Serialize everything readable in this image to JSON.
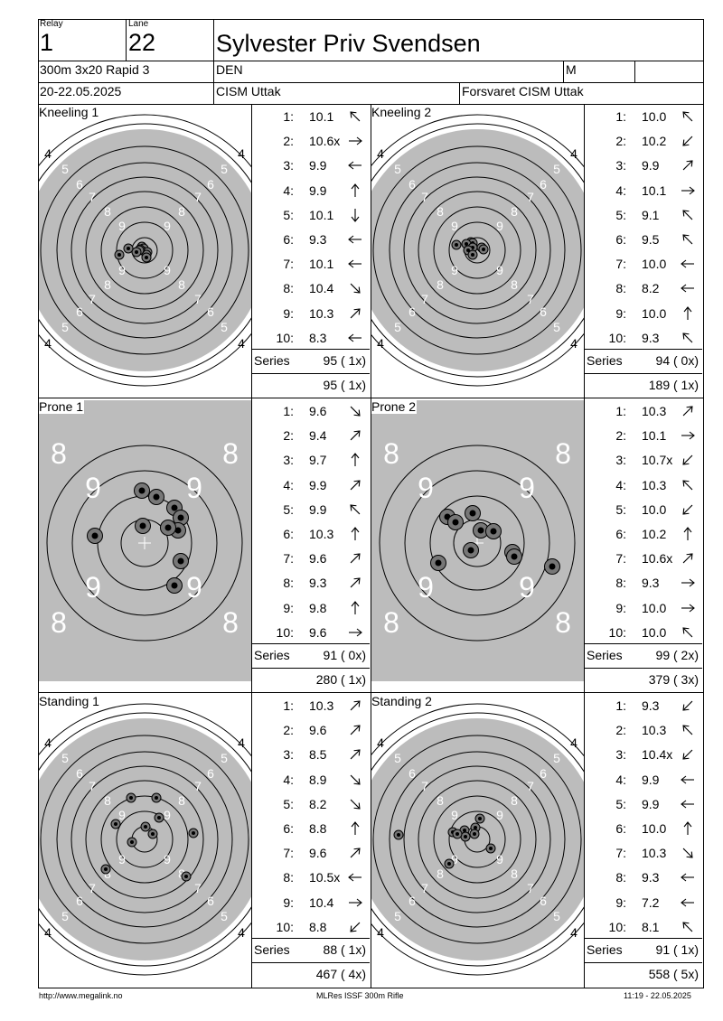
{
  "header": {
    "relay_label": "Relay",
    "relay": "1",
    "lane_label": "Lane",
    "lane": "22",
    "shooter_name": "Sylvester Priv Svendsen",
    "event": "300m 3x20 Rapid 3",
    "nation": "DEN",
    "gender": "M",
    "dates": "20-22.05.2025",
    "competition": "CISM Uttak",
    "organizer": "Forsvaret CISM Uttak"
  },
  "colors": {
    "target_black": "#bcbcbc",
    "ring_line": "#000000",
    "background": "#ffffff"
  },
  "series_label": "Series",
  "panels": [
    {
      "id": "k1",
      "label": "Kneeling 1",
      "kind": "kneel",
      "shots": [
        {
          "no": "1:",
          "value": "10.1",
          "dir": "up-left"
        },
        {
          "no": "2:",
          "value": "10.6x",
          "dir": "right"
        },
        {
          "no": "3:",
          "value": "9.9",
          "dir": "left"
        },
        {
          "no": "4:",
          "value": "9.9",
          "dir": "up"
        },
        {
          "no": "5:",
          "value": "10.1",
          "dir": "down"
        },
        {
          "no": "6:",
          "value": "9.3",
          "dir": "left"
        },
        {
          "no": "7:",
          "value": "10.1",
          "dir": "left"
        },
        {
          "no": "8:",
          "value": "10.4",
          "dir": "down-right"
        },
        {
          "no": "9:",
          "value": "10.3",
          "dir": "up-right"
        },
        {
          "no": "10:",
          "value": "8.3",
          "dir": "left"
        }
      ],
      "series_total": "95 ( 1x)",
      "running_total": "95 ( 1x)",
      "hits": [
        [
          -3,
          -4
        ],
        [
          -1,
          -2
        ],
        [
          3,
          2
        ],
        [
          2,
          5
        ],
        [
          2,
          8
        ],
        [
          -5,
          -1
        ],
        [
          -6,
          0
        ],
        [
          -9,
          2
        ],
        [
          -18,
          -2
        ],
        [
          -28,
          5
        ]
      ]
    },
    {
      "id": "k2",
      "label": "Kneeling 2",
      "kind": "kneel",
      "shots": [
        {
          "no": "1:",
          "value": "10.0",
          "dir": "up-left"
        },
        {
          "no": "2:",
          "value": "10.2",
          "dir": "down-left"
        },
        {
          "no": "3:",
          "value": "9.9",
          "dir": "up-right"
        },
        {
          "no": "4:",
          "value": "10.1",
          "dir": "right"
        },
        {
          "no": "5:",
          "value": "9.1",
          "dir": "up-left"
        },
        {
          "no": "6:",
          "value": "9.5",
          "dir": "up-left"
        },
        {
          "no": "7:",
          "value": "10.0",
          "dir": "left"
        },
        {
          "no": "8:",
          "value": "8.2",
          "dir": "left"
        },
        {
          "no": "9:",
          "value": "10.0",
          "dir": "up"
        },
        {
          "no": "10:",
          "value": "9.3",
          "dir": "up-left"
        }
      ],
      "series_total": "94 ( 0x)",
      "running_total": "189 ( 1x)",
      "hits": [
        [
          -10,
          -5
        ],
        [
          -7,
          -9
        ],
        [
          -5,
          -8
        ],
        [
          -12,
          -7
        ],
        [
          -5,
          -3
        ],
        [
          5,
          -3
        ],
        [
          7,
          -1
        ],
        [
          -10,
          0
        ],
        [
          -5,
          5
        ],
        [
          -23,
          -6
        ]
      ]
    },
    {
      "id": "p1",
      "label": "Prone 1",
      "kind": "prone",
      "shots": [
        {
          "no": "1:",
          "value": "9.6",
          "dir": "down-right"
        },
        {
          "no": "2:",
          "value": "9.4",
          "dir": "up-right"
        },
        {
          "no": "3:",
          "value": "9.7",
          "dir": "up"
        },
        {
          "no": "4:",
          "value": "9.9",
          "dir": "up-right"
        },
        {
          "no": "5:",
          "value": "9.9",
          "dir": "up-left"
        },
        {
          "no": "6:",
          "value": "10.3",
          "dir": "up"
        },
        {
          "no": "7:",
          "value": "9.6",
          "dir": "up-right"
        },
        {
          "no": "8:",
          "value": "9.3",
          "dir": "up-right"
        },
        {
          "no": "9:",
          "value": "9.8",
          "dir": "up"
        },
        {
          "no": "10:",
          "value": "9.6",
          "dir": "right"
        }
      ],
      "series_total": "91 ( 0x)",
      "running_total": "280 ( 1x)",
      "hits": [
        [
          -3,
          -58
        ],
        [
          13,
          -51
        ],
        [
          33,
          -39
        ],
        [
          40,
          -28
        ],
        [
          37,
          -14
        ],
        [
          26,
          -17
        ],
        [
          -2,
          -19
        ],
        [
          -55,
          -8
        ],
        [
          40,
          20
        ],
        [
          33,
          47
        ]
      ]
    },
    {
      "id": "p2",
      "label": "Prone 2",
      "kind": "prone",
      "shots": [
        {
          "no": "1:",
          "value": "10.3",
          "dir": "up-right"
        },
        {
          "no": "2:",
          "value": "10.1",
          "dir": "right"
        },
        {
          "no": "3:",
          "value": "10.7x",
          "dir": "down-left"
        },
        {
          "no": "4:",
          "value": "10.3",
          "dir": "up-left"
        },
        {
          "no": "5:",
          "value": "10.0",
          "dir": "down-left"
        },
        {
          "no": "6:",
          "value": "10.2",
          "dir": "up"
        },
        {
          "no": "7:",
          "value": "10.6x",
          "dir": "up-right"
        },
        {
          "no": "8:",
          "value": "9.3",
          "dir": "right"
        },
        {
          "no": "9:",
          "value": "10.0",
          "dir": "right"
        },
        {
          "no": "10:",
          "value": "10.0",
          "dir": "up-left"
        }
      ],
      "series_total": "99 ( 2x)",
      "running_total": "379 ( 3x)",
      "hits": [
        [
          -7,
          8
        ],
        [
          4,
          -14
        ],
        [
          18,
          -13
        ],
        [
          39,
          10
        ],
        [
          41,
          15
        ],
        [
          -5,
          -33
        ],
        [
          -33,
          -29
        ],
        [
          -24,
          -23
        ],
        [
          -43,
          22
        ],
        [
          83,
          26
        ]
      ]
    },
    {
      "id": "s1",
      "label": "Standing 1",
      "kind": "stand",
      "shots": [
        {
          "no": "1:",
          "value": "10.3",
          "dir": "up-right"
        },
        {
          "no": "2:",
          "value": "9.6",
          "dir": "up-right"
        },
        {
          "no": "3:",
          "value": "8.5",
          "dir": "up-right"
        },
        {
          "no": "4:",
          "value": "8.9",
          "dir": "down-right"
        },
        {
          "no": "5:",
          "value": "8.2",
          "dir": "down-right"
        },
        {
          "no": "6:",
          "value": "8.8",
          "dir": "up"
        },
        {
          "no": "7:",
          "value": "9.6",
          "dir": "up-right"
        },
        {
          "no": "8:",
          "value": "10.5x",
          "dir": "left"
        },
        {
          "no": "9:",
          "value": "10.4",
          "dir": "right"
        },
        {
          "no": "10:",
          "value": "8.8",
          "dir": "down-left"
        }
      ],
      "series_total": "88 ( 1x)",
      "running_total": "467 ( 4x)",
      "hits": [
        [
          1,
          -14
        ],
        [
          -15,
          -46
        ],
        [
          13,
          -46
        ],
        [
          16,
          -24
        ],
        [
          -32,
          -17
        ],
        [
          -14,
          3
        ],
        [
          9,
          -6
        ],
        [
          -43,
          33
        ],
        [
          46,
          41
        ],
        [
          54,
          -7
        ]
      ]
    },
    {
      "id": "s2",
      "label": "Standing 2",
      "kind": "stand",
      "shots": [
        {
          "no": "1:",
          "value": "9.3",
          "dir": "down-left"
        },
        {
          "no": "2:",
          "value": "10.3",
          "dir": "up-left"
        },
        {
          "no": "3:",
          "value": "10.4x",
          "dir": "down-left"
        },
        {
          "no": "4:",
          "value": "9.9",
          "dir": "left"
        },
        {
          "no": "5:",
          "value": "9.9",
          "dir": "left"
        },
        {
          "no": "6:",
          "value": "10.0",
          "dir": "up"
        },
        {
          "no": "7:",
          "value": "10.3",
          "dir": "down-right"
        },
        {
          "no": "8:",
          "value": "9.3",
          "dir": "left"
        },
        {
          "no": "9:",
          "value": "7.2",
          "dir": "left"
        },
        {
          "no": "10:",
          "value": "8.1",
          "dir": "up-left"
        }
      ],
      "series_total": "91 ( 1x)",
      "running_total": "558 ( 5x)",
      "hits": [
        [
          -14,
          -10
        ],
        [
          -2,
          -13
        ],
        [
          -13,
          -3
        ],
        [
          -3,
          -6
        ],
        [
          -27,
          -8
        ],
        [
          -22,
          -6
        ],
        [
          3,
          -23
        ],
        [
          15,
          10
        ],
        [
          -31,
          27
        ],
        [
          -87,
          -5
        ]
      ]
    }
  ],
  "footer": {
    "url": "http://www.megalink.no",
    "software": "MLRes ISSF 300m Rifle",
    "printed": "11:19 - 22.05.2025"
  }
}
